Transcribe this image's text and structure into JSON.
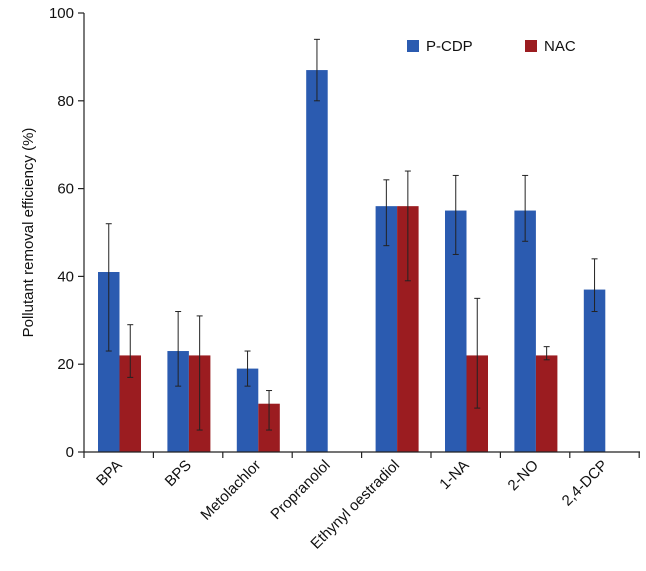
{
  "chart_data": {
    "type": "bar",
    "title": "",
    "xlabel": "",
    "ylabel": "Pollutant removal efficiency (%)",
    "ylim": [
      0,
      100
    ],
    "yticks": [
      0,
      20,
      40,
      60,
      80,
      100
    ],
    "grid": false,
    "legend_position": "top-right",
    "categories": [
      "BPA",
      "BPS",
      "Metolachlor",
      "Propranolol",
      "Ethynyl oestradiol",
      "1-NA",
      "2-NO",
      "2,4-DCP"
    ],
    "series": [
      {
        "name": "P-CDP",
        "color": "#2b5bb0",
        "values": [
          41,
          23,
          19,
          87,
          56,
          55,
          55,
          37
        ],
        "err_low": [
          23,
          15,
          15,
          80,
          47,
          45,
          48,
          32
        ],
        "err_high": [
          52,
          32,
          23,
          94,
          62,
          63,
          63,
          44
        ]
      },
      {
        "name": "NAC",
        "color": "#9b1c20",
        "values": [
          22,
          22,
          11,
          null,
          56,
          22,
          22,
          null
        ],
        "err_low": [
          17,
          5,
          5,
          null,
          39,
          10,
          21,
          null
        ],
        "err_high": [
          29,
          31,
          14,
          null,
          64,
          35,
          24,
          null
        ]
      }
    ]
  }
}
